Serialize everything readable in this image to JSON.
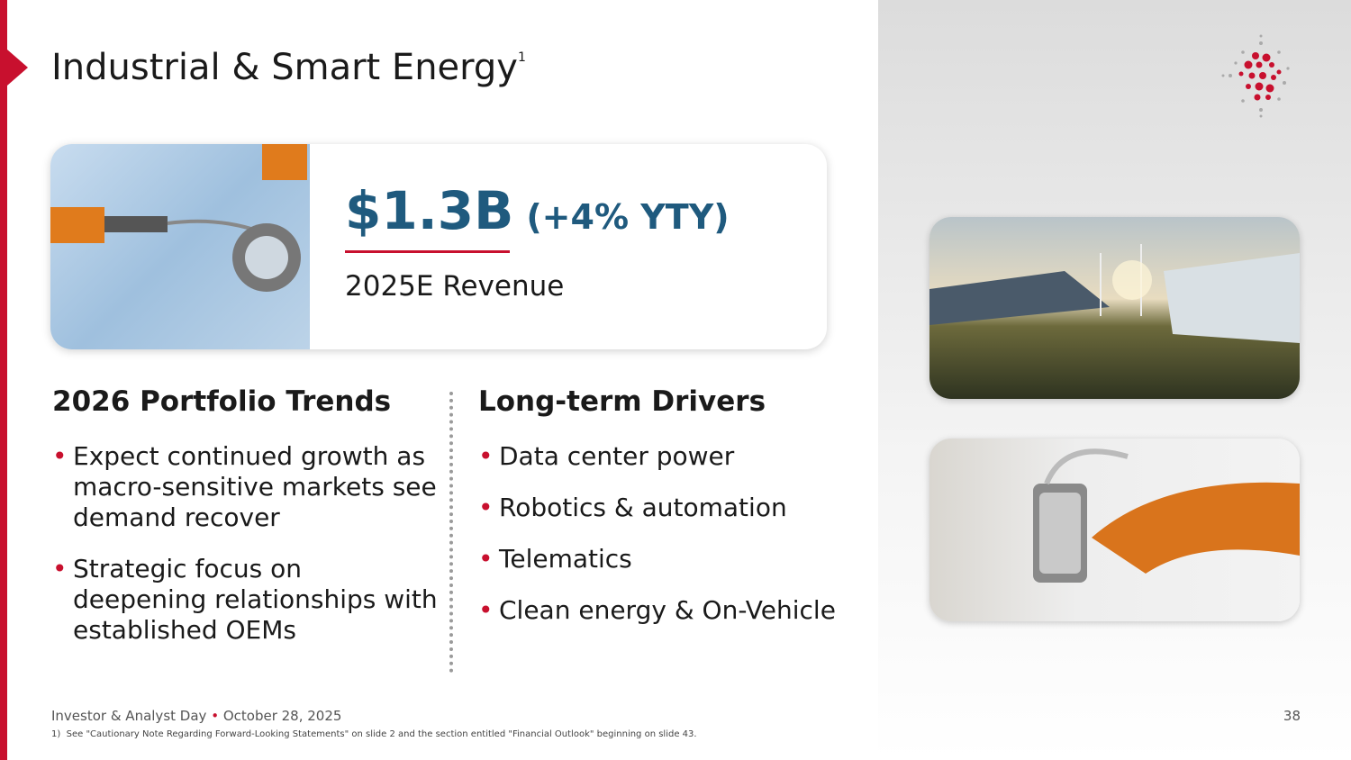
{
  "header": {
    "title": "Industrial & Smart Energy",
    "footnote_marker": "1"
  },
  "highlight": {
    "revenue": "$1.3B",
    "growth": "(+4% YTY)",
    "label": "2025E Revenue"
  },
  "portfolio_trends": {
    "heading": "2026 Portfolio Trends",
    "bullets": [
      "Expect continued growth as macro-sensitive markets see demand recover",
      "Strategic focus on deepening relationships with established OEMs"
    ]
  },
  "long_term_drivers": {
    "heading": "Long-term Drivers",
    "bullets": [
      "Data center power",
      "Robotics & automation",
      "Telematics",
      "Clean energy & On-Vehicle"
    ]
  },
  "footer": {
    "event": "Investor & Analyst Day",
    "date": "October 28, 2025",
    "page": "38",
    "footnote_marker": "1)",
    "footnote": "See \"Cautionary Note Regarding Forward-Looking Statements\" on slide 2 and the section entitled \"Financial Outlook\" beginning on slide 43."
  }
}
